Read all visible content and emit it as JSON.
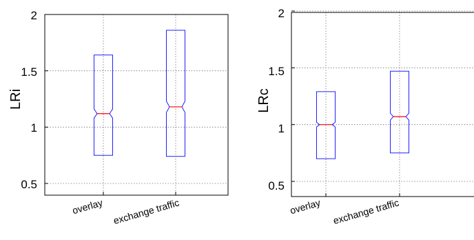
{
  "chart_data": [
    {
      "type": "boxplot",
      "notched": true,
      "ylabel": "LRi",
      "ylim": [
        0.4,
        2.0
      ],
      "yticks": [
        0.5,
        1,
        1.5,
        2
      ],
      "ytick_labels": [
        "0.5",
        "1",
        "1.5",
        "2"
      ],
      "grid": true,
      "categories": [
        "overlay",
        "exchange traffic"
      ],
      "boxes": [
        {
          "q1": 0.75,
          "median": 1.12,
          "q3": 1.64,
          "notch_low": 1.08,
          "notch_high": 1.16
        },
        {
          "q1": 0.74,
          "median": 1.18,
          "q3": 1.86,
          "notch_low": 1.13,
          "notch_high": 1.23
        }
      ],
      "colors": {
        "box": "#2020ff",
        "median": "#ff0000"
      }
    },
    {
      "type": "boxplot",
      "notched": true,
      "ylabel": "LRc",
      "ylim": [
        0.4,
        2.0
      ],
      "yticks": [
        0.5,
        1,
        1.5,
        2
      ],
      "ytick_labels": [
        "0.5",
        "1",
        "1.5",
        "2"
      ],
      "grid": true,
      "categories": [
        "overlay",
        "exchange traffic"
      ],
      "boxes": [
        {
          "q1": 0.7,
          "median": 1.0,
          "q3": 1.29,
          "notch_low": 0.98,
          "notch_high": 1.02
        },
        {
          "q1": 0.75,
          "median": 1.07,
          "q3": 1.47,
          "notch_low": 1.04,
          "notch_high": 1.1
        }
      ],
      "colors": {
        "box": "#2020ff",
        "median": "#ff0000"
      }
    }
  ]
}
